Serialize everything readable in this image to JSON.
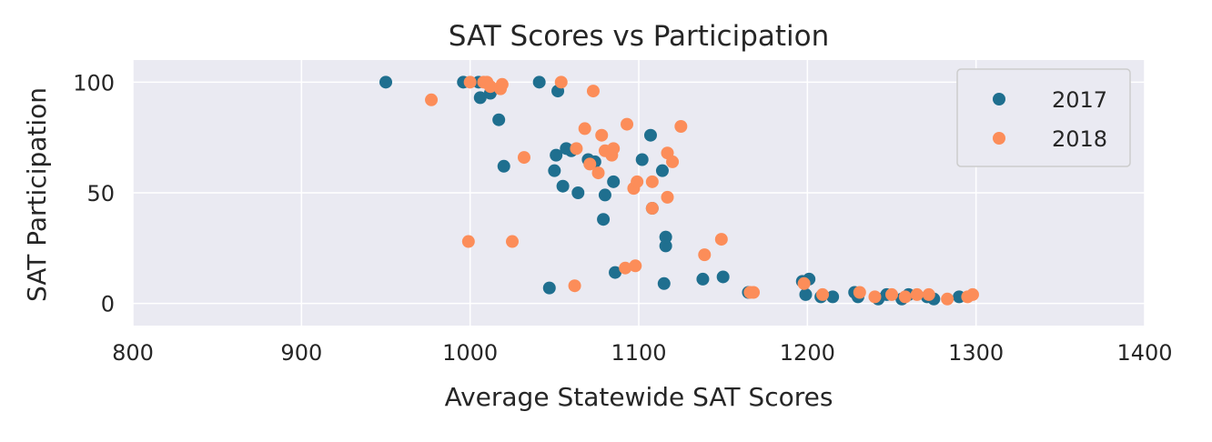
{
  "chart_data": {
    "type": "scatter",
    "title": "SAT Scores vs Participation",
    "xlabel": "Average Statewide SAT Scores",
    "ylabel": "SAT Participation",
    "xlim": [
      800,
      1400
    ],
    "ylim": [
      -10,
      110
    ],
    "xticks": [
      800,
      900,
      1000,
      1100,
      1200,
      1300,
      1400
    ],
    "yticks": [
      0,
      50,
      100
    ],
    "grid": true,
    "legend_position": "top-right",
    "series": [
      {
        "name": "2017",
        "color": "#1f6f8f",
        "points": [
          [
            950,
            100
          ],
          [
            996,
            100
          ],
          [
            1005,
            100
          ],
          [
            1006,
            93
          ],
          [
            1012,
            95
          ],
          [
            1017,
            83
          ],
          [
            1020,
            62
          ],
          [
            1041,
            100
          ],
          [
            1047,
            7
          ],
          [
            1050,
            60
          ],
          [
            1051,
            67
          ],
          [
            1052,
            96
          ],
          [
            1055,
            53
          ],
          [
            1057,
            70
          ],
          [
            1060,
            69
          ],
          [
            1064,
            50
          ],
          [
            1070,
            65
          ],
          [
            1074,
            64
          ],
          [
            1079,
            38
          ],
          [
            1080,
            49
          ],
          [
            1085,
            55
          ],
          [
            1086,
            14
          ],
          [
            1102,
            65
          ],
          [
            1107,
            76
          ],
          [
            1108,
            43
          ],
          [
            1114,
            60
          ],
          [
            1115,
            9
          ],
          [
            1116,
            26
          ],
          [
            1116,
            30
          ],
          [
            1138,
            11
          ],
          [
            1150,
            12
          ],
          [
            1165,
            5
          ],
          [
            1197,
            10
          ],
          [
            1199,
            4
          ],
          [
            1201,
            11
          ],
          [
            1208,
            3
          ],
          [
            1215,
            3
          ],
          [
            1228,
            5
          ],
          [
            1230,
            3
          ],
          [
            1242,
            2
          ],
          [
            1247,
            4
          ],
          [
            1256,
            2
          ],
          [
            1260,
            4
          ],
          [
            1271,
            3
          ],
          [
            1275,
            2
          ],
          [
            1290,
            3
          ]
        ]
      },
      {
        "name": "2018",
        "color": "#fc8d59",
        "points": [
          [
            977,
            92
          ],
          [
            999,
            28
          ],
          [
            1000,
            100
          ],
          [
            1008,
            100
          ],
          [
            1010,
            100
          ],
          [
            1012,
            98
          ],
          [
            1018,
            97
          ],
          [
            1019,
            99
          ],
          [
            1025,
            28
          ],
          [
            1032,
            66
          ],
          [
            1054,
            100
          ],
          [
            1062,
            8
          ],
          [
            1063,
            70
          ],
          [
            1068,
            79
          ],
          [
            1071,
            63
          ],
          [
            1073,
            96
          ],
          [
            1076,
            59
          ],
          [
            1078,
            76
          ],
          [
            1080,
            69
          ],
          [
            1084,
            67
          ],
          [
            1085,
            70
          ],
          [
            1092,
            16
          ],
          [
            1093,
            81
          ],
          [
            1097,
            52
          ],
          [
            1098,
            17
          ],
          [
            1099,
            55
          ],
          [
            1108,
            43
          ],
          [
            1108,
            55
          ],
          [
            1117,
            48
          ],
          [
            1117,
            68
          ],
          [
            1120,
            64
          ],
          [
            1125,
            80
          ],
          [
            1139,
            22
          ],
          [
            1149,
            29
          ],
          [
            1166,
            5
          ],
          [
            1168,
            5
          ],
          [
            1198,
            9
          ],
          [
            1209,
            4
          ],
          [
            1231,
            5
          ],
          [
            1240,
            3
          ],
          [
            1250,
            4
          ],
          [
            1258,
            3
          ],
          [
            1265,
            4
          ],
          [
            1272,
            4
          ],
          [
            1283,
            2
          ],
          [
            1295,
            3
          ],
          [
            1298,
            4
          ]
        ]
      }
    ]
  }
}
